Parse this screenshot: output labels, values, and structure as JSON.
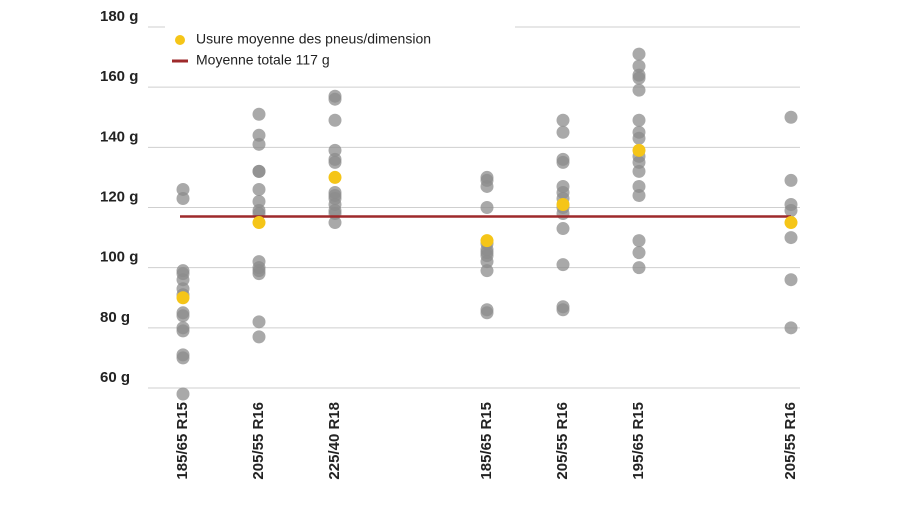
{
  "chart_data": {
    "type": "scatter",
    "categories": [
      "185/65 R15",
      "205/55 R16",
      "225/40 R18",
      null,
      "185/65 R15",
      "205/55 R16",
      "195/65 R15",
      null,
      "205/55 R16"
    ],
    "points": [
      [
        126,
        123,
        99,
        98,
        96,
        93,
        91,
        85,
        84,
        80,
        79,
        71,
        70,
        58
      ],
      [
        151,
        144,
        141,
        132,
        132,
        126,
        122,
        119,
        118,
        102,
        100,
        99,
        98,
        82,
        77
      ],
      [
        157,
        156,
        149,
        139,
        136,
        135,
        125,
        124,
        123,
        121,
        119,
        118,
        115
      ],
      [],
      [
        130,
        129,
        127,
        120,
        108,
        106,
        105,
        104,
        102,
        99,
        86,
        85
      ],
      [
        149,
        145,
        136,
        135,
        127,
        125,
        123,
        120,
        118,
        113,
        101,
        87,
        86
      ],
      [
        171,
        167,
        164,
        163,
        159,
        149,
        145,
        143,
        137,
        135,
        132,
        127,
        124,
        109,
        105,
        100
      ],
      [],
      [
        150,
        129,
        121,
        119,
        110,
        96,
        80
      ]
    ],
    "points_color": "#8c8c8c",
    "series": [
      {
        "name": "Usure moyenne des pneus/dimension",
        "color": "#f5c518",
        "values": [
          90,
          115,
          130,
          null,
          109,
          121,
          139,
          null,
          115
        ]
      }
    ],
    "mean_line": {
      "name": "Moyenne totale 117 g",
      "value": 117,
      "color": "#9e2a2b"
    },
    "ylim": [
      60,
      180
    ],
    "yticks": [
      {
        "value": 60,
        "label": "60 g"
      },
      {
        "value": 80,
        "label": "80 g"
      },
      {
        "value": 100,
        "label": "100 g"
      },
      {
        "value": 120,
        "label": "120 g"
      },
      {
        "value": 140,
        "label": "140 g"
      },
      {
        "value": 160,
        "label": "160 g"
      },
      {
        "value": 180,
        "label": "180 g"
      }
    ],
    "grid": true
  }
}
